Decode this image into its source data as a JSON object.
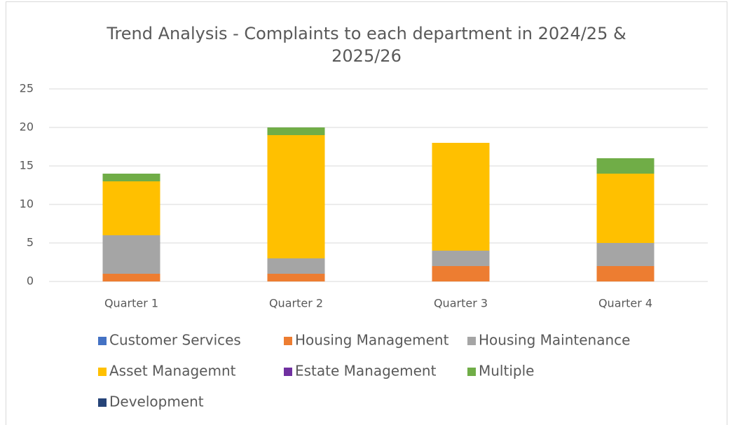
{
  "chart_data": {
    "type": "stacked_bar",
    "title": "Trend Analysis - Complaints to each department in  2024/25 & 2025/26",
    "categories": [
      "Quarter 1",
      "Quarter 2",
      "Quarter 3",
      "Quarter 4"
    ],
    "series": [
      {
        "name": "Customer Services",
        "color": "#4472c4",
        "values": [
          0,
          0,
          0,
          0
        ]
      },
      {
        "name": "Housing Management",
        "color": "#ed7d31",
        "values": [
          1,
          1,
          2,
          2
        ]
      },
      {
        "name": "Housing Maintenance",
        "color": "#a5a5a5",
        "values": [
          5,
          2,
          2,
          3
        ]
      },
      {
        "name": "Asset Managemnt",
        "color": "#ffc000",
        "values": [
          7,
          16,
          14,
          9
        ]
      },
      {
        "name": "Estate Management",
        "color": "#7030a0",
        "values": [
          0,
          0,
          0,
          0
        ]
      },
      {
        "name": "Multiple",
        "color": "#70ad47",
        "values": [
          1,
          1,
          0,
          2
        ]
      },
      {
        "name": "Development",
        "color": "#264478",
        "values": [
          0,
          0,
          0,
          0
        ]
      }
    ],
    "ylim": [
      0,
      25
    ],
    "yticks": [
      0,
      5,
      10,
      15,
      20,
      25
    ],
    "grid": true,
    "legend": "bottom"
  }
}
